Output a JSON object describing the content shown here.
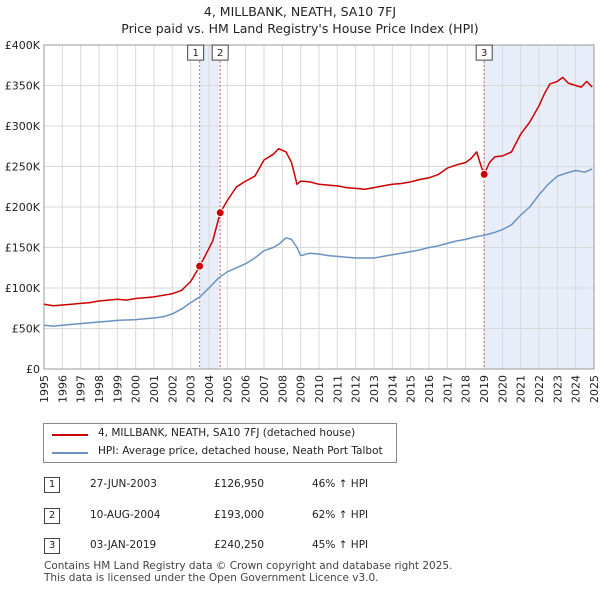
{
  "header": {
    "title": "4, MILLBANK, NEATH, SA10 7FJ",
    "subtitle": "Price paid vs. HM Land Registry's House Price Index (HPI)"
  },
  "colors": {
    "property": "#cc0000",
    "hpi": "#6a93c1",
    "shade": "#e8eef9",
    "vline": "#e06666"
  },
  "chart_data": {
    "type": "line",
    "title": "4, MILLBANK, NEATH, SA10 7FJ",
    "xlim": [
      1995,
      2025
    ],
    "ylim": [
      0,
      400000
    ],
    "x_ticks": [
      "1995",
      "1996",
      "1997",
      "1998",
      "1999",
      "2000",
      "2001",
      "2002",
      "2003",
      "2004",
      "2005",
      "2006",
      "2007",
      "2008",
      "2009",
      "2010",
      "2011",
      "2012",
      "2013",
      "2014",
      "2015",
      "2016",
      "2017",
      "2018",
      "2019",
      "2020",
      "2021",
      "2022",
      "2023",
      "2024",
      "2025"
    ],
    "y_ticks": [
      {
        "value": 0,
        "label": "£0"
      },
      {
        "value": 50000,
        "label": "£50K"
      },
      {
        "value": 100000,
        "label": "£100K"
      },
      {
        "value": 150000,
        "label": "£150K"
      },
      {
        "value": 200000,
        "label": "£200K"
      },
      {
        "value": 250000,
        "label": "£250K"
      },
      {
        "value": 300000,
        "label": "£300K"
      },
      {
        "value": 350000,
        "label": "£350K"
      },
      {
        "value": 400000,
        "label": "£400K"
      }
    ],
    "series": [
      {
        "name": "4, MILLBANK, NEATH, SA10 7FJ (detached house)",
        "color": "#cc0000",
        "x": [
          1995.0,
          1995.5,
          1996.0,
          1996.5,
          1997.0,
          1997.5,
          1998.0,
          1998.5,
          1999.0,
          1999.5,
          2000.0,
          2000.5,
          2001.0,
          2001.5,
          2002.0,
          2002.5,
          2003.0,
          2003.49,
          2003.8,
          2004.2,
          2004.61,
          2005.0,
          2005.5,
          2006.0,
          2006.5,
          2007.0,
          2007.5,
          2007.8,
          2008.2,
          2008.5,
          2008.8,
          2009.0,
          2009.5,
          2010.0,
          2010.5,
          2011.0,
          2011.5,
          2012.0,
          2012.5,
          2013.0,
          2013.5,
          2014.0,
          2014.5,
          2015.0,
          2015.5,
          2016.0,
          2016.5,
          2017.0,
          2017.5,
          2018.0,
          2018.3,
          2018.6,
          2018.85,
          2019.01,
          2019.3,
          2019.6,
          2020.0,
          2020.5,
          2021.0,
          2021.5,
          2022.0,
          2022.3,
          2022.6,
          2023.0,
          2023.3,
          2023.6,
          2024.0,
          2024.3,
          2024.6,
          2024.9
        ],
        "y": [
          80000,
          78000,
          79000,
          80000,
          81000,
          82000,
          84000,
          85000,
          86000,
          85000,
          87000,
          88000,
          89000,
          91000,
          93000,
          97000,
          108000,
          126950,
          140000,
          158000,
          193000,
          208000,
          225000,
          232000,
          238000,
          258000,
          265000,
          272000,
          268000,
          255000,
          228000,
          232000,
          231000,
          228000,
          227000,
          226000,
          224000,
          223000,
          222000,
          224000,
          226000,
          228000,
          229000,
          231000,
          234000,
          236000,
          240000,
          248000,
          252000,
          255000,
          260000,
          268000,
          250000,
          240250,
          255000,
          262000,
          263000,
          268000,
          290000,
          305000,
          325000,
          340000,
          352000,
          355000,
          360000,
          353000,
          350000,
          348000,
          355000,
          348000
        ]
      },
      {
        "name": "HPI: Average price, detached house, Neath Port Talbot",
        "color": "#6a93c1",
        "x": [
          1995.0,
          1995.5,
          1996.0,
          1996.5,
          1997.0,
          1997.5,
          1998.0,
          1998.5,
          1999.0,
          1999.5,
          2000.0,
          2000.5,
          2001.0,
          2001.5,
          2002.0,
          2002.5,
          2003.0,
          2003.5,
          2004.0,
          2004.5,
          2005.0,
          2005.5,
          2006.0,
          2006.5,
          2007.0,
          2007.5,
          2007.8,
          2008.2,
          2008.5,
          2008.8,
          2009.0,
          2009.5,
          2010.0,
          2010.5,
          2011.0,
          2011.5,
          2012.0,
          2012.5,
          2013.0,
          2013.5,
          2014.0,
          2014.5,
          2015.0,
          2015.5,
          2016.0,
          2016.5,
          2017.0,
          2017.5,
          2018.0,
          2018.5,
          2019.0,
          2019.5,
          2020.0,
          2020.5,
          2021.0,
          2021.5,
          2022.0,
          2022.5,
          2023.0,
          2023.5,
          2024.0,
          2024.5,
          2024.9
        ],
        "y": [
          54000,
          53000,
          54000,
          55000,
          56000,
          57000,
          58000,
          59000,
          60000,
          60500,
          61000,
          62000,
          63000,
          64500,
          68000,
          74000,
          82000,
          89000,
          100000,
          112000,
          120000,
          125000,
          130000,
          137000,
          146000,
          150000,
          154000,
          162000,
          160000,
          150000,
          140000,
          143000,
          142000,
          140000,
          139000,
          138000,
          137000,
          137000,
          137000,
          139000,
          141000,
          143000,
          145000,
          147000,
          150000,
          152000,
          155000,
          158000,
          160000,
          163000,
          165000,
          168000,
          172000,
          178000,
          190000,
          200000,
          215000,
          228000,
          238000,
          242000,
          245000,
          243000,
          247000
        ]
      }
    ],
    "sales": [
      {
        "label": "1",
        "x": 2003.49,
        "y": 126950
      },
      {
        "label": "2",
        "x": 2004.61,
        "y": 193000
      },
      {
        "label": "3",
        "x": 2019.01,
        "y": 240250
      }
    ],
    "shaded_ranges": [
      [
        2003.49,
        2004.61
      ],
      [
        2019.01,
        2025.0
      ]
    ],
    "marker_box_value": 390000
  },
  "legend": {
    "property_label": "4, MILLBANK, NEATH, SA10 7FJ (detached house)",
    "hpi_label": "HPI: Average price, detached house, Neath Port Talbot"
  },
  "transactions": [
    {
      "num": "1",
      "date": "27-JUN-2003",
      "price": "£126,950",
      "hpi": "46% ↑ HPI"
    },
    {
      "num": "2",
      "date": "10-AUG-2004",
      "price": "£193,000",
      "hpi": "62% ↑ HPI"
    },
    {
      "num": "3",
      "date": "03-JAN-2019",
      "price": "£240,250",
      "hpi": "45% ↑ HPI"
    }
  ],
  "footer": {
    "line1": "Contains HM Land Registry data © Crown copyright and database right 2025.",
    "line2": "This data is licensed under the Open Government Licence v3.0."
  }
}
